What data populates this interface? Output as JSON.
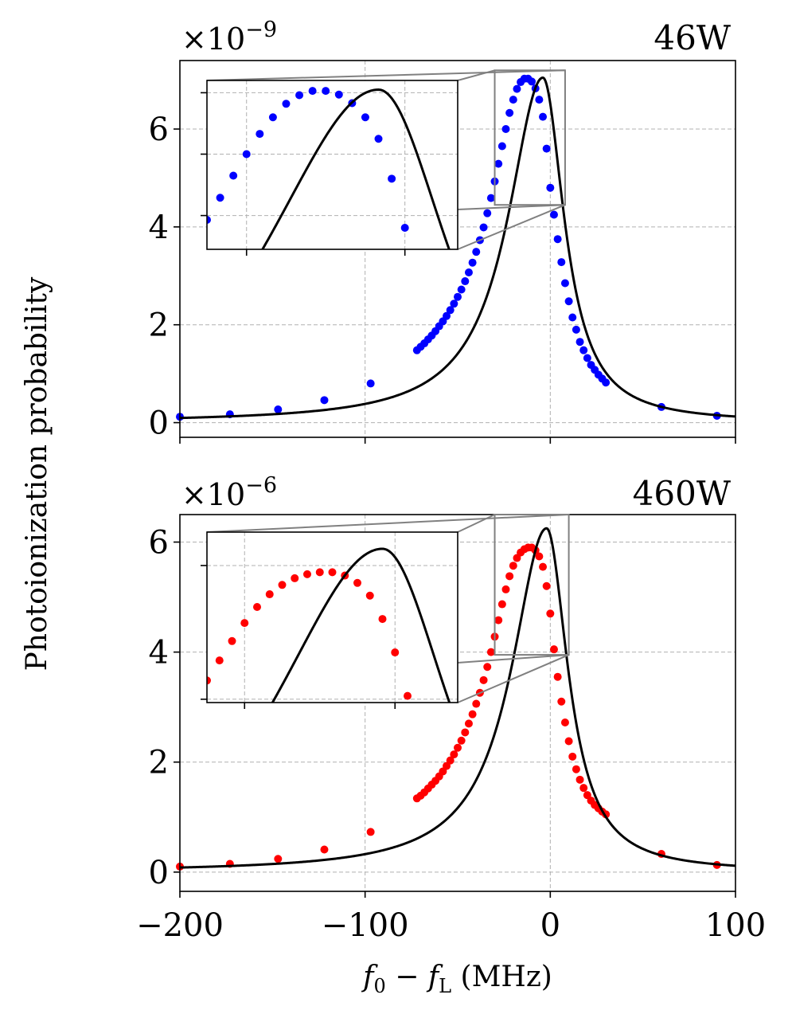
{
  "chart_data": {
    "type": "scatter",
    "ylabel": "Photoionization probability",
    "xlabel_parts": [
      "f",
      "0",
      " − ",
      "f",
      "L",
      " (MHz)"
    ],
    "xlim": [
      -200,
      100
    ],
    "xticks": [
      -200,
      -100,
      0,
      100
    ],
    "xtick_labels": [
      "−200",
      "−100",
      "0",
      "100"
    ],
    "colors": {
      "curve": "#000000",
      "zoom": "#808080"
    },
    "panels": [
      {
        "title": "46W",
        "exponent_base": "×10",
        "exponent_power": "−9",
        "ylim": [
          -0.3,
          7.4
        ],
        "yticks": [
          0,
          2,
          4,
          6
        ],
        "ytick_labels": [
          "0",
          "2",
          "4",
          "6"
        ],
        "marker_color": "#0000ff",
        "model": {
          "amplitude": 7.05,
          "center": -4,
          "gamma_left": 23,
          "gamma_right": 14,
          "baseline": 0
        },
        "points": {
          "x": [
            -200,
            -173,
            -147,
            -122,
            -97,
            -72,
            -70,
            -68,
            -66,
            -64,
            -62,
            -60,
            -58,
            -56,
            -54,
            -52,
            -50,
            -48,
            -46,
            -44,
            -42,
            -40,
            -38,
            -36,
            -34,
            -32,
            -30,
            -28,
            -26,
            -24,
            -22,
            -20,
            -18,
            -16,
            -14,
            -12,
            -10,
            -8,
            -6,
            -4,
            -2,
            0,
            2,
            4,
            6,
            8,
            10,
            12,
            14,
            16,
            18,
            20,
            22,
            24,
            26,
            28,
            30,
            60,
            90
          ],
          "y": [
            0.12,
            0.17,
            0.27,
            0.46,
            0.8,
            1.48,
            1.55,
            1.62,
            1.7,
            1.78,
            1.87,
            1.97,
            2.07,
            2.18,
            2.3,
            2.43,
            2.57,
            2.72,
            2.89,
            3.07,
            3.27,
            3.49,
            3.73,
            3.99,
            4.28,
            4.59,
            4.93,
            5.29,
            5.65,
            6.0,
            6.33,
            6.6,
            6.82,
            6.96,
            7.03,
            7.03,
            6.97,
            6.83,
            6.6,
            6.25,
            5.6,
            4.8,
            4.25,
            3.75,
            3.28,
            2.85,
            2.48,
            2.15,
            1.9,
            1.65,
            1.48,
            1.32,
            1.18,
            1.08,
            0.98,
            0.9,
            0.82,
            0.32,
            0.14
          ]
        },
        "inset": {
          "xlim": [
            -30,
            8
          ],
          "ylim": [
            4.45,
            7.2
          ],
          "xticks": [
            -24,
            0
          ],
          "yticks": [
            5,
            6,
            7
          ],
          "link_corner_x": -30,
          "link_corner_y": 4.45,
          "link_upper_y": 7.2
        }
      },
      {
        "title": "460W",
        "exponent_base": "×10",
        "exponent_power": "−6",
        "ylim": [
          -0.35,
          6.5
        ],
        "yticks": [
          0,
          2,
          4,
          6
        ],
        "ytick_labels": [
          "0",
          "2",
          "4",
          "6"
        ],
        "marker_color": "#ff0000",
        "model": {
          "amplitude": 6.25,
          "center": -2,
          "gamma_left": 23,
          "gamma_right": 14,
          "baseline": 0
        },
        "points": {
          "x": [
            -200,
            -173,
            -147,
            -122,
            -97,
            -72,
            -70,
            -68,
            -66,
            -64,
            -62,
            -60,
            -58,
            -56,
            -54,
            -52,
            -50,
            -48,
            -46,
            -44,
            -42,
            -40,
            -38,
            -36,
            -34,
            -32,
            -30,
            -28,
            -26,
            -24,
            -22,
            -20,
            -18,
            -16,
            -14,
            -12,
            -10,
            -8,
            -6,
            -4,
            -2,
            0,
            2,
            4,
            6,
            8,
            10,
            12,
            14,
            16,
            18,
            20,
            22,
            24,
            26,
            28,
            30,
            60,
            90
          ],
          "y": [
            0.1,
            0.15,
            0.24,
            0.41,
            0.73,
            1.34,
            1.39,
            1.45,
            1.52,
            1.59,
            1.66,
            1.74,
            1.83,
            1.93,
            2.03,
            2.14,
            2.26,
            2.39,
            2.54,
            2.7,
            2.87,
            3.06,
            3.26,
            3.49,
            3.73,
            4.0,
            4.28,
            4.58,
            4.87,
            5.14,
            5.38,
            5.57,
            5.71,
            5.81,
            5.87,
            5.9,
            5.9,
            5.85,
            5.74,
            5.55,
            5.2,
            4.7,
            4.05,
            3.55,
            3.1,
            2.72,
            2.38,
            2.1,
            1.87,
            1.68,
            1.53,
            1.4,
            1.3,
            1.22,
            1.16,
            1.1,
            1.05,
            0.33,
            0.13
          ]
        },
        "inset": {
          "xlim": [
            -30,
            10
          ],
          "ylim": [
            3.95,
            6.5
          ],
          "xticks": [
            -24,
            0
          ],
          "yticks": [
            4,
            6
          ],
          "link_corner_x": -30,
          "link_corner_y": 3.95,
          "link_upper_y": 6.5
        }
      }
    ]
  }
}
